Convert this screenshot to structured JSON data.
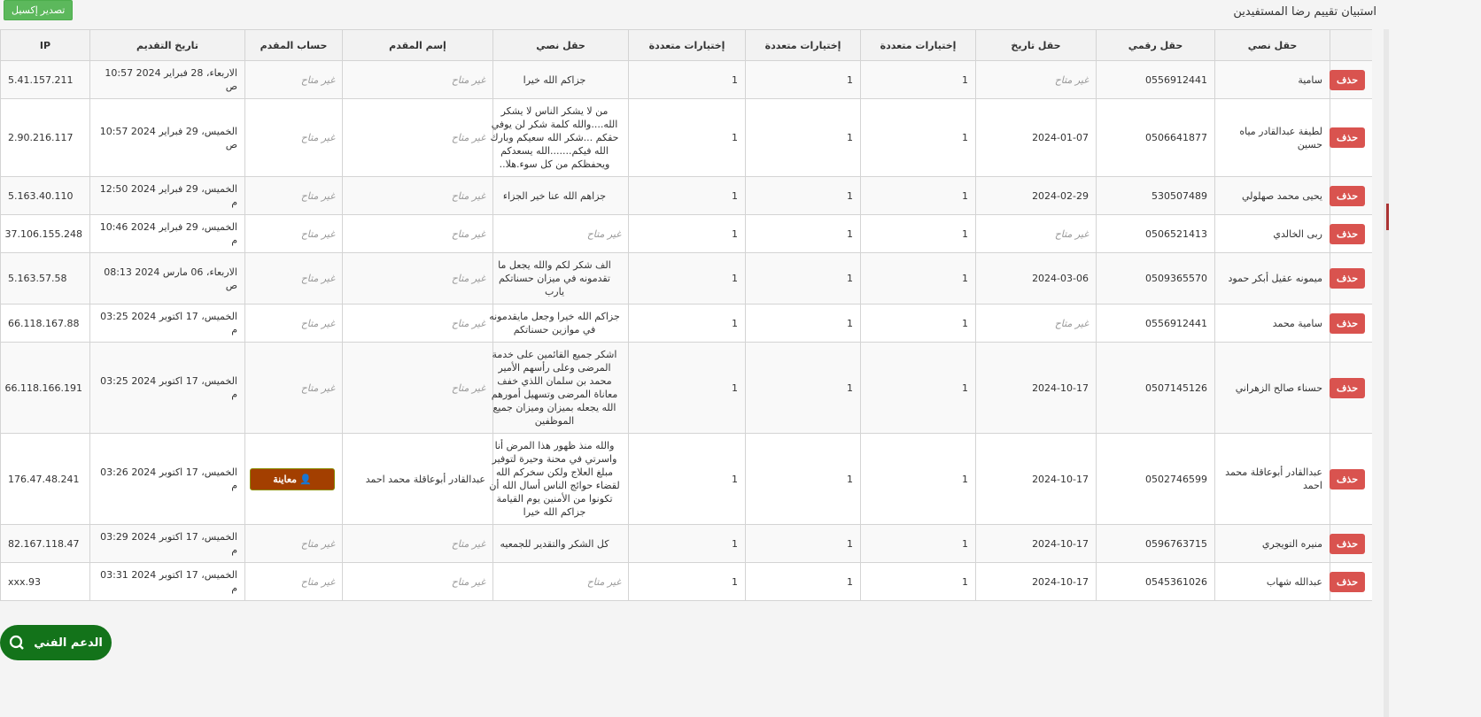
{
  "title": "استبيان تقييم رضا المستفيدين",
  "export_label": "تصدير إكسيل",
  "unavailable": "غير متاح",
  "delete_label": "حذف",
  "view_label": "معاينة",
  "support_label": "الدعم الفني",
  "colors": {
    "delete": "#d9534f",
    "export": "#5cb85c",
    "view": "#a33f00",
    "support": "#13731a"
  },
  "columns": [
    "",
    "حقل نصي",
    "حقل رقمي",
    "حقل تاريخ",
    "إختيارات متعددة",
    "إختيارات متعددة",
    "إختيارات متعددة",
    "حقل نصي",
    "إسم المقدم",
    "حساب المقدم",
    "تاريخ التقديم",
    "IP"
  ],
  "rows": [
    [
      "سامية",
      "0556912441",
      "غير متاح",
      "1",
      "1",
      "1",
      "جزاكم الله خيرا",
      "غير متاح",
      "غير متاح",
      "الاربعاء، 28 فبراير 2024 10:57 ص",
      "5.41.157.211"
    ],
    [
      "لطيفة عبدالقادر مياه حسين",
      "0506641877",
      "2024-01-07",
      "1",
      "1",
      "1",
      "من لا يشكر الناس لا يشكر الله....والله كلمة شكر لن يوفي حقكم ...شكر الله سعيكم وبارك الله فيكم.......الله يسعدكم ويحفظكم من كل سوء.هلا..",
      "غير متاح",
      "غير متاح",
      "الخميس، 29 فبراير 2024 10:57 ص",
      "2.90.216.117"
    ],
    [
      "يحيى محمد صهلولي",
      "530507489",
      "2024-02-29",
      "1",
      "1",
      "1",
      "جزاهم الله عنا خير الجزاء",
      "غير متاح",
      "غير متاح",
      "الخميس، 29 فبراير 2024 12:50 م",
      "5.163.40.110"
    ],
    [
      "ربى الخالدي",
      "0506521413",
      "غير متاح",
      "1",
      "1",
      "1",
      "غير متاح",
      "غير متاح",
      "غير متاح",
      "الخميس، 29 فبراير 2024 10:46 م",
      "37.106.155.248"
    ],
    [
      "ميمونه عقيل أبكر حمود",
      "0509365570",
      "2024-03-06",
      "1",
      "1",
      "1",
      "الف شكر لكم والله يجعل ما تقدمونه في ميزان حسناتكم يارب",
      "غير متاح",
      "غير متاح",
      "الاربعاء، 06 مارس 2024 08:13 ص",
      "5.163.57.58"
    ],
    [
      "سامية محمد",
      "0556912441",
      "غير متاح",
      "1",
      "1",
      "1",
      "جزاكم الله خيرا وجعل مايقدمونه في موازين حسناتكم",
      "غير متاح",
      "غير متاح",
      "الخميس، 17 اكتوبر 2024 03:25 م",
      "66.118.167.88"
    ],
    [
      "حسناء صالح الزهراني",
      "0507145126",
      "2024-10-17",
      "1",
      "1",
      "1",
      "اشكر جميع القائمين على خدمة المرضى وعلى رأسهم الأمير محمد بن سلمان اللذي خفف معاناة المرضى وتسهيل أمورهم الله يجعله بميزان وميزان جميع الموظفين",
      "غير متاح",
      "غير متاح",
      "الخميس، 17 اكتوبر 2024 03:25 م",
      "66.118.166.191"
    ],
    [
      "عبدالقادر أبوعاقلة محمد احمد",
      "0502746599",
      "2024-10-17",
      "1",
      "1",
      "1",
      "والله منذ ظهور هذا المرض أنا واسرتي في محنة وحيرة لتوفير مبلغ العلاج ولكن سخركم الله لقضاء حوائج الناس أسال الله أن تكونوا من الأمنين يوم القيامة جزاكم الله خيرا",
      "عبدالقادر أبوعاقلة محمد احمد",
      "__view__",
      "الخميس، 17 اكتوبر 2024 03:26 م",
      "176.47.48.241"
    ],
    [
      "منيره التويجري",
      "0596763715",
      "2024-10-17",
      "1",
      "1",
      "1",
      "كل الشكر والتقدير للجمعيه",
      "غير متاح",
      "غير متاح",
      "الخميس، 17 اكتوبر 2024 03:29 م",
      "82.167.118.47"
    ],
    [
      "عبدالله شهاب",
      "0545361026",
      "2024-10-17",
      "1",
      "1",
      "1",
      "غير متاح",
      "غير متاح",
      "غير متاح",
      "الخميس، 17 اكتوبر 2024 03:31 م",
      "93.xxx"
    ]
  ]
}
